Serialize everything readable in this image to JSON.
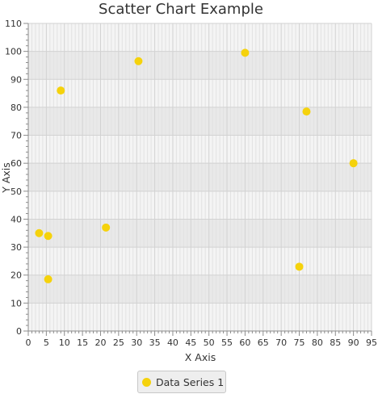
{
  "chart_data": {
    "type": "scatter",
    "title": "Scatter Chart Example",
    "xlabel": "X Axis",
    "ylabel": "Y Axis",
    "xlim": [
      0,
      95
    ],
    "ylim": [
      0,
      110
    ],
    "x_ticks": [
      0,
      5,
      10,
      15,
      20,
      25,
      30,
      35,
      40,
      45,
      50,
      55,
      60,
      65,
      70,
      75,
      80,
      85,
      90,
      95
    ],
    "y_ticks": [
      0,
      10,
      20,
      30,
      40,
      50,
      60,
      70,
      80,
      90,
      100,
      110
    ],
    "grid": true,
    "legend_position": "bottom",
    "series": [
      {
        "name": "Data Series 1",
        "color": "#f5d20c",
        "points": [
          {
            "x": 3,
            "y": 35
          },
          {
            "x": 5.5,
            "y": 34
          },
          {
            "x": 5.5,
            "y": 18.5
          },
          {
            "x": 9,
            "y": 86
          },
          {
            "x": 21.5,
            "y": 37
          },
          {
            "x": 30.5,
            "y": 96.5
          },
          {
            "x": 60,
            "y": 99.5
          },
          {
            "x": 75,
            "y": 23
          },
          {
            "x": 77,
            "y": 78.5
          },
          {
            "x": 90,
            "y": 60
          }
        ]
      }
    ]
  }
}
